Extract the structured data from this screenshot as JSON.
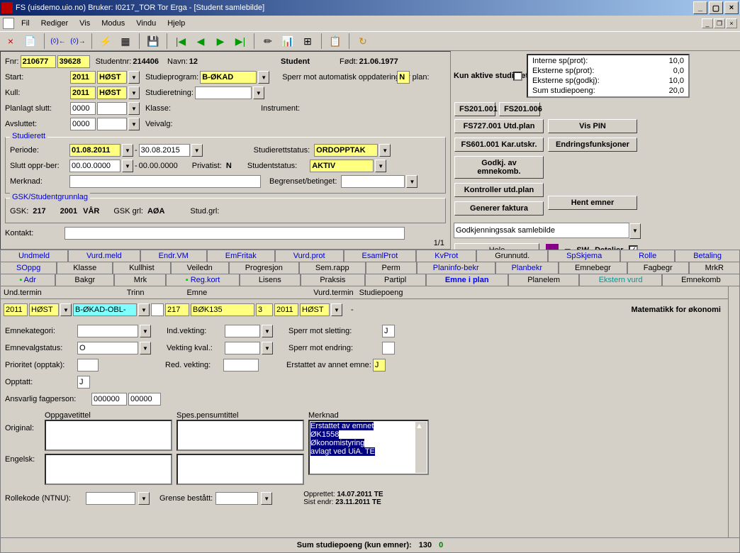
{
  "window": {
    "title": "FS (uisdemo.uio.no) Bruker: I0217_TOR Tor Erga - [Student samlebilde]"
  },
  "menu": {
    "fil": "Fil",
    "rediger": "Rediger",
    "vis": "Vis",
    "modus": "Modus",
    "vindu": "Vindu",
    "hjelp": "Hjelp"
  },
  "student": {
    "fnr_label": "Fnr:",
    "fnr1": "210677",
    "fnr2": "39628",
    "studentnr_label": "Studentnr:",
    "studentnr": "214406",
    "navn_label": "Navn:",
    "navn": "12",
    "header": "Student",
    "fodt_label": "Født:",
    "fodt": "21.06.1977",
    "start_label": "Start:",
    "start_year": "2011",
    "start_sem": "HØST",
    "studieprogram_label": "Studieprogram:",
    "studieprogram": "B-ØKAD",
    "sperr_auto": "Sperr mot automatisk oppdatering av plan:",
    "sperr_auto_val": "N",
    "kull_label": "Kull:",
    "kull_year": "2011",
    "kull_sem": "HØST",
    "studieretning_label": "Studieretning:",
    "planlagt_slutt_label": "Planlagt slutt:",
    "planlagt_slutt": "0000",
    "klasse_label": "Klasse:",
    "instrument_label": "Instrument:",
    "avsluttet_label": "Avsluttet:",
    "avsluttet": "0000",
    "veivalg_label": "Veivalg:"
  },
  "studierett": {
    "legend": "Studierett",
    "periode_label": "Periode:",
    "periode_from": "01.08.2011",
    "periode_to": "30.08.2015",
    "studierettstatus_label": "Studierettstatus:",
    "studierettstatus": "ORDOPPTAK",
    "slutt_label": "Slutt oppr-ber:",
    "slutt_from": "00.00.0000",
    "slutt_to": "00.00.0000",
    "privatist_label": "Privatist:",
    "privatist": "N",
    "studentstatus_label": "Studentstatus:",
    "studentstatus": "AKTIV",
    "merknad_label": "Merknad:",
    "begrenset_label": "Begrenset/betinget:"
  },
  "gsk": {
    "legend": "GSK/Studentgrunnlag",
    "gsk_label": "GSK:",
    "gsk_val": "217",
    "gsk_year": "2001",
    "gsk_sem": "VÅR",
    "gsk_grl_label": "GSK grl:",
    "gsk_grl": "AØA",
    "studgrl_label": "Stud.grl:"
  },
  "kontakt_label": "Kontakt:",
  "counter": "1/1",
  "right": {
    "kun_aktive": "Kun aktive studieretter",
    "sp_rows": [
      {
        "label": "Interne sp(prot):",
        "val": "10,0"
      },
      {
        "label": "Eksterne sp(prot):",
        "val": "0,0"
      },
      {
        "label": "Eksterne sp(godkj):",
        "val": "10,0"
      },
      {
        "label": "Sum studiepoeng:",
        "val": "20,0"
      }
    ],
    "btns": {
      "fs201": "FS201.001",
      "fs201b": "FS201.006",
      "fs727": "FS727.001 Utd.plan",
      "vis_pin": "Vis PIN",
      "fs601": "FS601.001 Kar.utskr.",
      "endr": "Endringsfunksjoner",
      "godkj": "Godkj. av emnekomb.",
      "kontroller": "Kontroller utd.plan",
      "generer": "Generer faktura",
      "hent": "Hent emner"
    },
    "select_val": "Godkjenningssak samlebilde",
    "hele": "Hele",
    "sw": "SW",
    "detaljer": "Detaljer"
  },
  "tabs": {
    "row1": [
      "Undmeld",
      "Vurd.meld",
      "Endr.VM",
      "EmFritak",
      "Vurd.prot",
      "EsamlProt",
      "KvProt",
      "Grunnutd.",
      "SpSkjema",
      "Rolle",
      "Betaling"
    ],
    "row2": [
      "SOppg",
      "Klasse",
      "Kullhist",
      "Veiledn",
      "Progresjon",
      "Sem.rapp",
      "Perm",
      "Planinfo-bekr",
      "Planbekr",
      "Emnebegr",
      "Fagbegr",
      "MrkR"
    ],
    "row3": [
      "Adr",
      "Bakgr",
      "Mrk",
      "Reg.kort",
      "Lisens",
      "Praksis",
      "Partipl",
      "Emne i plan",
      "Planelem",
      "Ekstern vurd",
      "Emnekomb"
    ]
  },
  "col_headers": {
    "und_termin": "Und.termin",
    "trinn": "Trinn",
    "emne": "Emne",
    "vurd_termin": "Vurd.termin",
    "studiepoeng": "Studiepoeng"
  },
  "data_row": {
    "year1": "2011",
    "sem1": "HØST",
    "code": "B-ØKAD-OBL-",
    "v217": "217",
    "bok": "BØK135",
    "v3": "3",
    "year2": "2011",
    "sem2": "HØST",
    "title": "Matematikk for økonomi"
  },
  "form": {
    "emnekategori": "Emnekategori:",
    "ind_vekting": "Ind.vekting:",
    "sperr_sletting": "Sperr mot sletting:",
    "sperr_sletting_val": "J",
    "emnevalgstatus": "Emnevalgstatus:",
    "emnevalgstatus_val": "O",
    "vekting_kval": "Vekting kval.:",
    "sperr_endring": "Sperr mot endring:",
    "prioritet": "Prioritet (opptak):",
    "red_vekting": "Red. vekting:",
    "erstattet": "Erstattet av annet emne:",
    "erstattet_val": "J",
    "opptatt": "Opptatt:",
    "opptatt_val": "J",
    "ansvarlig": "Ansvarlig fagperson:",
    "ansvarlig1": "000000",
    "ansvarlig2": "00000",
    "oppgavetittel": "Oppgavetittel",
    "spes_pensum": "Spes.pensumtittel",
    "merknad": "Merknad",
    "original": "Original:",
    "engelsk": "Engelsk:",
    "merknad_text1": "Erstattet av emnet",
    "merknad_text2": "ØK1558",
    "merknad_text3": "Økonomistyring",
    "merknad_text4": "avlagt ved UiA. TE",
    "rollekode": "Rollekode (NTNU):",
    "grense": "Grense bestått:",
    "opprettet_lbl": "Opprettet:",
    "opprettet": "14.07.2011",
    "opprettet_by": "TE",
    "sist_endr_lbl": "Sist endr:",
    "sist_endr": "23.11.2011",
    "sist_endr_by": "TE"
  },
  "sum": {
    "label": "Sum studiepoeng (kun emner):",
    "v1": "130",
    "v2": "0"
  }
}
